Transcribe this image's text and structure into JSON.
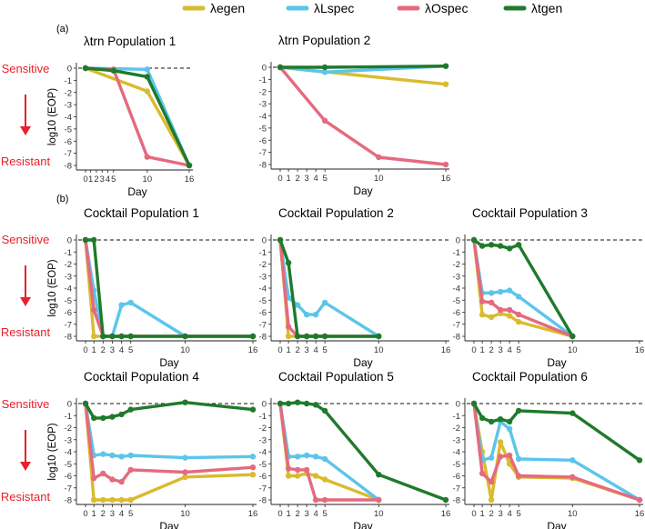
{
  "legend": [
    {
      "name": "λegen",
      "color": "#d9bb2e"
    },
    {
      "name": "λLspec",
      "color": "#5bc5ea"
    },
    {
      "name": "λOspec",
      "color": "#e56a7e"
    },
    {
      "name": "λtgen",
      "color": "#1f7a2b"
    }
  ],
  "panel_labels": [
    "(a)",
    "(b)"
  ],
  "side_labels": {
    "sensitive": "Sensitive",
    "resistant": "Resistant",
    "red": "#e8202a"
  },
  "axis": {
    "xlabel": "Day",
    "ylabel": "log10 (EOP)"
  },
  "chart_data": [
    {
      "type": "line",
      "title": "λtrn Population 1",
      "xlabel": "Day",
      "ylabel": "log10 (EOP)",
      "x_ticks": [
        0,
        1,
        2,
        3,
        4,
        5,
        10,
        16
      ],
      "y_ticks": [
        0,
        -1,
        -2,
        -3,
        -4,
        -5,
        -6,
        -7,
        -8
      ],
      "xlim": [
        0,
        16
      ],
      "ylim": [
        -8,
        0
      ],
      "reference_line": 0,
      "series": [
        {
          "name": "λegen",
          "x": [
            0,
            10,
            16
          ],
          "y": [
            0,
            -1.9,
            -8
          ]
        },
        {
          "name": "λLspec",
          "x": [
            0,
            10,
            16
          ],
          "y": [
            0,
            -0.1,
            -8
          ]
        },
        {
          "name": "λOspec",
          "x": [
            0,
            5,
            10,
            16
          ],
          "y": [
            0,
            -0.1,
            -7.3,
            -8
          ]
        },
        {
          "name": "λtgen",
          "x": [
            0,
            5,
            10,
            16
          ],
          "y": [
            0,
            -0.2,
            -0.7,
            -8
          ]
        }
      ]
    },
    {
      "type": "line",
      "title": "λtrn Population 2",
      "xlabel": "Day",
      "ylabel": "",
      "x_ticks": [
        0,
        1,
        2,
        3,
        4,
        5,
        10,
        16
      ],
      "y_ticks": [
        0,
        -1,
        -2,
        -3,
        -4,
        -5,
        -6,
        -7,
        -8
      ],
      "xlim": [
        0,
        16
      ],
      "ylim": [
        -8,
        0
      ],
      "reference_line": 0,
      "series": [
        {
          "name": "λegen",
          "x": [
            0,
            16
          ],
          "y": [
            0,
            -1.4
          ]
        },
        {
          "name": "λLspec",
          "x": [
            0,
            5,
            16
          ],
          "y": [
            0,
            -0.4,
            0.1
          ]
        },
        {
          "name": "λOspec",
          "x": [
            0,
            5,
            10,
            16
          ],
          "y": [
            0,
            -4.4,
            -7.4,
            -8
          ]
        },
        {
          "name": "λtgen",
          "x": [
            0,
            5,
            16
          ],
          "y": [
            0,
            0,
            0.1
          ]
        }
      ]
    },
    {
      "type": "line",
      "title": "Cocktail Population 1",
      "xlabel": "Day",
      "ylabel": "log10 (EOP)",
      "x_ticks": [
        0,
        1,
        2,
        3,
        4,
        5,
        10,
        16
      ],
      "y_ticks": [
        0,
        -1,
        -2,
        -3,
        -4,
        -5,
        -6,
        -7,
        -8
      ],
      "xlim": [
        0,
        16
      ],
      "ylim": [
        -8,
        0
      ],
      "reference_line": 0,
      "series": [
        {
          "name": "λegen",
          "x": [
            0,
            1,
            2,
            3,
            4,
            5,
            10,
            16
          ],
          "y": [
            0,
            -8,
            -8,
            -8,
            -8,
            -8,
            -8,
            -8
          ]
        },
        {
          "name": "λLspec",
          "x": [
            0,
            1,
            2,
            3,
            4,
            5,
            10,
            16
          ],
          "y": [
            0,
            -4.2,
            -8,
            -8,
            -5.4,
            -5.2,
            -8,
            -8
          ]
        },
        {
          "name": "λOspec",
          "x": [
            0,
            1,
            2,
            3,
            4,
            5,
            10,
            16
          ],
          "y": [
            0,
            -5.8,
            -8,
            -8,
            -8,
            -8,
            -8,
            -8
          ]
        },
        {
          "name": "λtgen",
          "x": [
            0,
            1,
            2,
            3,
            4,
            5,
            10,
            16
          ],
          "y": [
            0,
            0,
            -8,
            -8,
            -8,
            -8,
            -8,
            -8
          ]
        }
      ]
    },
    {
      "type": "line",
      "title": "Cocktail Population 2",
      "xlabel": "Day",
      "ylabel": "",
      "x_ticks": [
        0,
        1,
        2,
        3,
        4,
        5,
        10,
        16
      ],
      "y_ticks": [
        0,
        -1,
        -2,
        -3,
        -4,
        -5,
        -6,
        -7,
        -8
      ],
      "xlim": [
        0,
        16
      ],
      "ylim": [
        -8,
        0
      ],
      "reference_line": 0,
      "series": [
        {
          "name": "λegen",
          "x": [
            0,
            1,
            2,
            3,
            4,
            5,
            10
          ],
          "y": [
            0,
            -8,
            -8,
            -8,
            -8,
            -8,
            -8
          ]
        },
        {
          "name": "λLspec",
          "x": [
            0,
            1,
            2,
            3,
            4,
            5,
            10
          ],
          "y": [
            0,
            -4.8,
            -5.4,
            -6.2,
            -6.2,
            -5.2,
            -8
          ]
        },
        {
          "name": "λOspec",
          "x": [
            0,
            1,
            2,
            3,
            4,
            5,
            10
          ],
          "y": [
            0,
            -7.2,
            -8,
            -8,
            -8,
            -8,
            -8
          ]
        },
        {
          "name": "λtgen",
          "x": [
            0,
            1,
            2,
            3,
            4,
            5,
            10
          ],
          "y": [
            0,
            -1.9,
            -8,
            -8,
            -8,
            -8,
            -8
          ]
        }
      ]
    },
    {
      "type": "line",
      "title": "Cocktail Population 3",
      "xlabel": "Day",
      "ylabel": "",
      "x_ticks": [
        0,
        1,
        2,
        3,
        4,
        5,
        10,
        16
      ],
      "y_ticks": [
        0,
        -1,
        -2,
        -3,
        -4,
        -5,
        -6,
        -7,
        -8
      ],
      "xlim": [
        0,
        16
      ],
      "ylim": [
        -8,
        0
      ],
      "reference_line": 0,
      "series": [
        {
          "name": "λegen",
          "x": [
            0,
            1,
            2,
            3,
            4,
            5,
            10
          ],
          "y": [
            0,
            -6.2,
            -6.4,
            -6.1,
            -6.3,
            -6.8,
            -8
          ]
        },
        {
          "name": "λLspec",
          "x": [
            0,
            1,
            2,
            3,
            4,
            5,
            10
          ],
          "y": [
            0,
            -4.4,
            -4.4,
            -4.3,
            -4.2,
            -4.7,
            -8
          ]
        },
        {
          "name": "λOspec",
          "x": [
            0,
            1,
            2,
            3,
            4,
            5,
            10
          ],
          "y": [
            0,
            -5.1,
            -5.2,
            -5.8,
            -5.8,
            -6.2,
            -8
          ]
        },
        {
          "name": "λtgen",
          "x": [
            0,
            1,
            2,
            3,
            4,
            5,
            10
          ],
          "y": [
            0,
            -0.5,
            -0.4,
            -0.5,
            -0.7,
            -0.4,
            -8
          ]
        }
      ]
    },
    {
      "type": "line",
      "title": "Cocktail Population 4",
      "xlabel": "Day",
      "ylabel": "log10 (EOP)",
      "x_ticks": [
        0,
        1,
        2,
        3,
        4,
        5,
        10,
        16
      ],
      "y_ticks": [
        0,
        -1,
        -2,
        -3,
        -4,
        -5,
        -6,
        -7,
        -8
      ],
      "xlim": [
        0,
        16
      ],
      "ylim": [
        -8,
        0
      ],
      "reference_line": 0,
      "series": [
        {
          "name": "λegen",
          "x": [
            0,
            1,
            2,
            3,
            4,
            5,
            10,
            16
          ],
          "y": [
            0,
            -8,
            -8,
            -8,
            -8,
            -8,
            -6.1,
            -5.9
          ]
        },
        {
          "name": "λLspec",
          "x": [
            0,
            1,
            2,
            3,
            4,
            5,
            10,
            16
          ],
          "y": [
            0,
            -4.3,
            -4.2,
            -4.3,
            -4.4,
            -4.3,
            -4.5,
            -4.4
          ]
        },
        {
          "name": "λOspec",
          "x": [
            0,
            1,
            2,
            3,
            4,
            5,
            10,
            16
          ],
          "y": [
            0,
            -6.2,
            -5.8,
            -6.3,
            -6.5,
            -5.5,
            -5.7,
            -5.3
          ]
        },
        {
          "name": "λtgen",
          "x": [
            0,
            1,
            2,
            3,
            4,
            5,
            10,
            16
          ],
          "y": [
            0,
            -1.2,
            -1.2,
            -1.1,
            -0.9,
            -0.5,
            0.1,
            -0.5
          ]
        }
      ]
    },
    {
      "type": "line",
      "title": "Cocktail Population 5",
      "xlabel": "Day",
      "ylabel": "",
      "x_ticks": [
        0,
        1,
        2,
        3,
        4,
        5,
        10,
        16
      ],
      "y_ticks": [
        0,
        -1,
        -2,
        -3,
        -4,
        -5,
        -6,
        -7,
        -8
      ],
      "xlim": [
        0,
        16
      ],
      "ylim": [
        -8,
        0
      ],
      "reference_line": 0,
      "series": [
        {
          "name": "λegen",
          "x": [
            0,
            1,
            2,
            3,
            4,
            5,
            10
          ],
          "y": [
            0,
            -6,
            -6,
            -5.8,
            -6,
            -6.3,
            -8
          ]
        },
        {
          "name": "λLspec",
          "x": [
            0,
            1,
            2,
            3,
            4,
            5,
            10
          ],
          "y": [
            0,
            -4.4,
            -4.4,
            -4.3,
            -4.4,
            -4.6,
            -8
          ]
        },
        {
          "name": "λOspec",
          "x": [
            0,
            1,
            2,
            3,
            4,
            5,
            10
          ],
          "y": [
            0,
            -5.4,
            -5.5,
            -5.5,
            -8,
            -8,
            -8
          ]
        },
        {
          "name": "λtgen",
          "x": [
            0,
            1,
            2,
            3,
            4,
            5,
            10,
            16
          ],
          "y": [
            0,
            0,
            0.1,
            0,
            -0.1,
            -0.6,
            -5.9,
            -8
          ]
        }
      ]
    },
    {
      "type": "line",
      "title": "Cocktail Population 6",
      "xlabel": "Day",
      "ylabel": "",
      "x_ticks": [
        0,
        1,
        2,
        3,
        4,
        5,
        10,
        16
      ],
      "y_ticks": [
        0,
        -1,
        -2,
        -3,
        -4,
        -5,
        -6,
        -7,
        -8
      ],
      "xlim": [
        0,
        16
      ],
      "ylim": [
        -8,
        0
      ],
      "reference_line": 0,
      "series": [
        {
          "name": "λegen",
          "x": [
            0,
            1,
            2,
            3,
            4,
            5,
            10,
            16
          ],
          "y": [
            0,
            -4,
            -8,
            -3.2,
            -5,
            -6.1,
            -6.2,
            -8
          ]
        },
        {
          "name": "λLspec",
          "x": [
            0,
            1,
            2,
            3,
            4,
            5,
            10,
            16
          ],
          "y": [
            0,
            -4.7,
            -4.5,
            -1.5,
            -2.1,
            -4.6,
            -4.7,
            -8
          ]
        },
        {
          "name": "λOspec",
          "x": [
            0,
            1,
            2,
            3,
            4,
            5,
            10,
            16
          ],
          "y": [
            0,
            -5.8,
            -6.5,
            -4.4,
            -4.3,
            -6,
            -6.1,
            -8
          ]
        },
        {
          "name": "λtgen",
          "x": [
            0,
            1,
            2,
            3,
            4,
            5,
            10,
            16
          ],
          "y": [
            0,
            -1.2,
            -1.5,
            -1.3,
            -1.5,
            -0.6,
            -0.8,
            -4.7
          ]
        }
      ]
    }
  ]
}
